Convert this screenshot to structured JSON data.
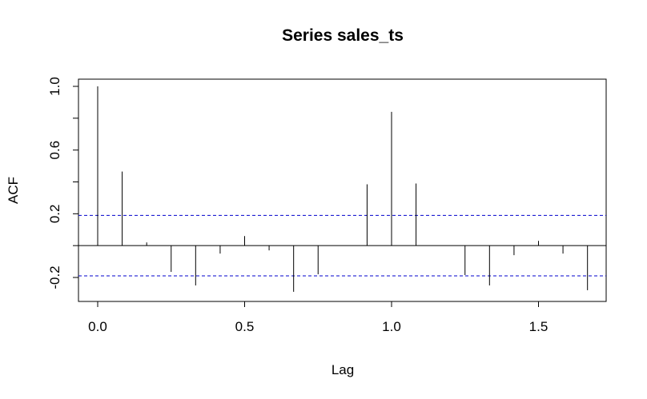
{
  "chart_data": {
    "type": "bar",
    "title": "Series  sales_ts",
    "xlabel": "Lag",
    "ylabel": "ACF",
    "xlim": [
      0,
      1.7333
    ],
    "ylim": [
      -0.35,
      1.02
    ],
    "x_ticks": [
      {
        "value": 0.0,
        "label": "0.0"
      },
      {
        "value": 0.5,
        "label": "0.5"
      },
      {
        "value": 1.0,
        "label": "1.0"
      },
      {
        "value": 1.5,
        "label": "1.5"
      }
    ],
    "y_ticks": [
      {
        "value": 1.0,
        "label": "1.0"
      },
      {
        "value": 0.6,
        "label": "0.6"
      },
      {
        "value": 0.2,
        "label": "0.2"
      },
      {
        "value": -0.2,
        "label": "-0.2"
      }
    ],
    "y_minor_ticks": [
      0.8,
      0.4,
      0.0
    ],
    "lags": [
      0.0,
      0.0833,
      0.1667,
      0.25,
      0.3333,
      0.4167,
      0.5,
      0.5833,
      0.6667,
      0.75,
      0.8333,
      0.9167,
      1.0,
      1.0833,
      1.1667,
      1.25,
      1.3333,
      1.4167,
      1.5,
      1.5833,
      1.6667
    ],
    "values": [
      1.0,
      0.465,
      0.02,
      -0.165,
      -0.25,
      -0.05,
      0.06,
      -0.03,
      -0.29,
      -0.18,
      0.0,
      0.385,
      0.84,
      0.39,
      0.0,
      -0.185,
      -0.25,
      -0.06,
      0.03,
      -0.05,
      -0.28
    ],
    "confidence_bound": 0.19,
    "colors": {
      "bars": "#000000",
      "zero_line": "#000000",
      "confidence_lines": "#0000cc"
    }
  }
}
